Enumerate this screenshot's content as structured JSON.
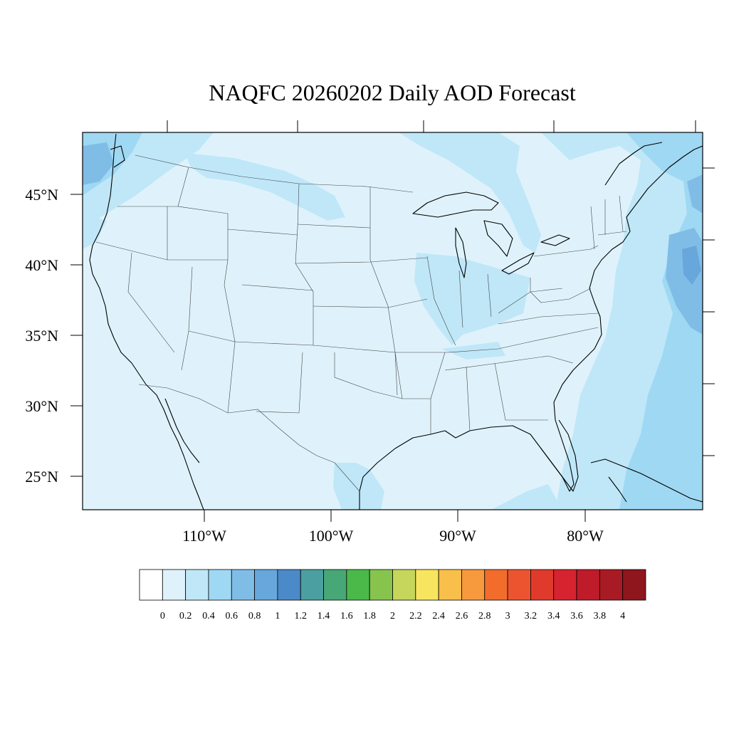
{
  "title": "NAQFC 20260202 Daily AOD Forecast",
  "lat_labels": [
    "45°N",
    "40°N",
    "35°N",
    "30°N",
    "25°N"
  ],
  "lon_labels": [
    "110°W",
    "100°W",
    "90°W",
    "80°W"
  ],
  "colorbar": {
    "colors": [
      "#ffffff",
      "#dff2fb",
      "#bfe7f8",
      "#9fd8f3",
      "#80bde6",
      "#67a7dc",
      "#4b8ac8",
      "#4b9fa1",
      "#48a776",
      "#4ab94a",
      "#86c44e",
      "#c5d65a",
      "#f8e55f",
      "#f9bf4b",
      "#f79a3d",
      "#f26c2c",
      "#ec5430",
      "#e03a2d",
      "#d62330",
      "#be1c2a",
      "#a91b24",
      "#8e161c"
    ],
    "labels": [
      "0",
      "0.2",
      "0.4",
      "0.6",
      "0.8",
      "1",
      "1.2",
      "1.4",
      "1.6",
      "1.8",
      "2",
      "2.2",
      "2.4",
      "2.6",
      "2.8",
      "3",
      "3.2",
      "3.4",
      "3.6",
      "3.8",
      "4"
    ]
  },
  "field_colors": {
    "low": "#dff2fb",
    "moderate": "#bfe7f8",
    "elevated": "#9fd8f3",
    "high": "#80bde6",
    "peak": "#67a7dc"
  }
}
